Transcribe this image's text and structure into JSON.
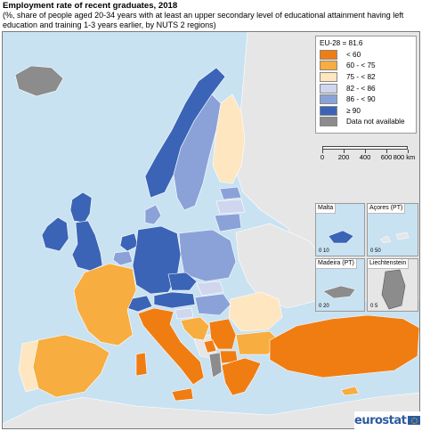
{
  "title": "Employment rate of recent graduates, 2018",
  "subtitle": "(%, share of people aged 20-34 years with at least an upper secondary level of educational attainment having left education and training 1-3 years earlier, by NUTS 2 regions)",
  "legend": {
    "eu_value": "EU-28 = 81.6",
    "classes": [
      {
        "label": "< 60",
        "color": "#f07d12"
      },
      {
        "label": "60 - < 75",
        "color": "#f7ad3f"
      },
      {
        "label": "75 - < 82",
        "color": "#fde6c0"
      },
      {
        "label": "82 - < 86",
        "color": "#cfd6ee"
      },
      {
        "label": "86 - < 90",
        "color": "#8ba2d8"
      },
      {
        "label": "≥ 90",
        "color": "#3b64b6"
      },
      {
        "label": "Data not available",
        "color": "#8c8c8c"
      }
    ]
  },
  "scale_bar": {
    "labels": [
      "0",
      "200",
      "400",
      "600",
      "800 km"
    ]
  },
  "insets": {
    "malta": {
      "label": "Malta",
      "scale": "0 10"
    },
    "azores": {
      "label": "Açores (PT)",
      "scale": "0 50"
    },
    "madeira": {
      "label": "Madeira (PT)",
      "scale": "0 20"
    },
    "liechtenstein": {
      "label": "Liechtenstein",
      "scale": "0 5"
    }
  },
  "logo": {
    "text": "eurostat"
  },
  "colors": {
    "sea": "#c9e2f2",
    "non_eu_land": "#e6e6e6",
    "border": "#ffffff"
  },
  "regions": [
    {
      "name": "Iceland",
      "class": 6
    },
    {
      "name": "Ireland",
      "class": 5
    },
    {
      "name": "Scotland",
      "class": 5
    },
    {
      "name": "England",
      "class": 5
    },
    {
      "name": "Norway",
      "class": 5
    },
    {
      "name": "Sweden",
      "class": 4
    },
    {
      "name": "Finland",
      "class": 2
    },
    {
      "name": "Estonia",
      "class": 4
    },
    {
      "name": "Latvia",
      "class": 3
    },
    {
      "name": "Lithuania",
      "class": 4
    },
    {
      "name": "Denmark",
      "class": 4
    },
    {
      "name": "Netherlands",
      "class": 5
    },
    {
      "name": "Belgium",
      "class": 4
    },
    {
      "name": "Germany",
      "class": 5
    },
    {
      "name": "Poland",
      "class": 4
    },
    {
      "name": "Czechia",
      "class": 5
    },
    {
      "name": "Slovakia",
      "class": 3
    },
    {
      "name": "Austria",
      "class": 5
    },
    {
      "name": "Switzerland",
      "class": 5
    },
    {
      "name": "Hungary",
      "class": 4
    },
    {
      "name": "France",
      "class": 1
    },
    {
      "name": "Spain",
      "class": 1
    },
    {
      "name": "Portugal",
      "class": 2
    },
    {
      "name": "Italy",
      "class": 0
    },
    {
      "name": "Slovenia",
      "class": 3
    },
    {
      "name": "Croatia",
      "class": 1
    },
    {
      "name": "Romania",
      "class": 2
    },
    {
      "name": "Bulgaria",
      "class": 1
    },
    {
      "name": "Serbia",
      "class": 0
    },
    {
      "name": "North Macedonia",
      "class": 0
    },
    {
      "name": "Montenegro",
      "class": 0
    },
    {
      "name": "Albania",
      "class": 6
    },
    {
      "name": "Greece",
      "class": 0
    },
    {
      "name": "Turkey",
      "class": 0
    },
    {
      "name": "Cyprus",
      "class": 1
    },
    {
      "name": "Malta",
      "class": 5
    },
    {
      "name": "Madeira",
      "class": 6
    },
    {
      "name": "Liechtenstein",
      "class": 6
    }
  ]
}
